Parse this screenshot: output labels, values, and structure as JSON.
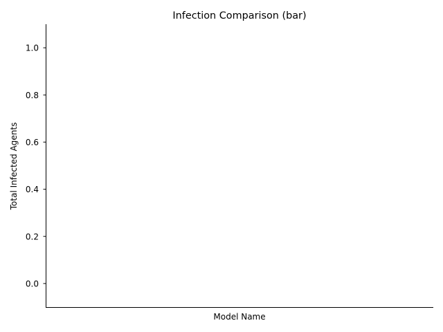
{
  "chart_data": {
    "type": "bar",
    "title": "Infection Comparison (bar)",
    "xlabel": "Model Name",
    "ylabel": "Total Infected Agents",
    "categories": [],
    "values": [],
    "ylim": [
      -0.1,
      1.1
    ],
    "yticks": [
      "0.0",
      "0.2",
      "0.4",
      "0.6",
      "0.8",
      "1.0"
    ],
    "ytick_values": [
      0.0,
      0.2,
      0.4,
      0.6,
      0.8,
      1.0
    ],
    "grid": false,
    "legend": "none"
  }
}
